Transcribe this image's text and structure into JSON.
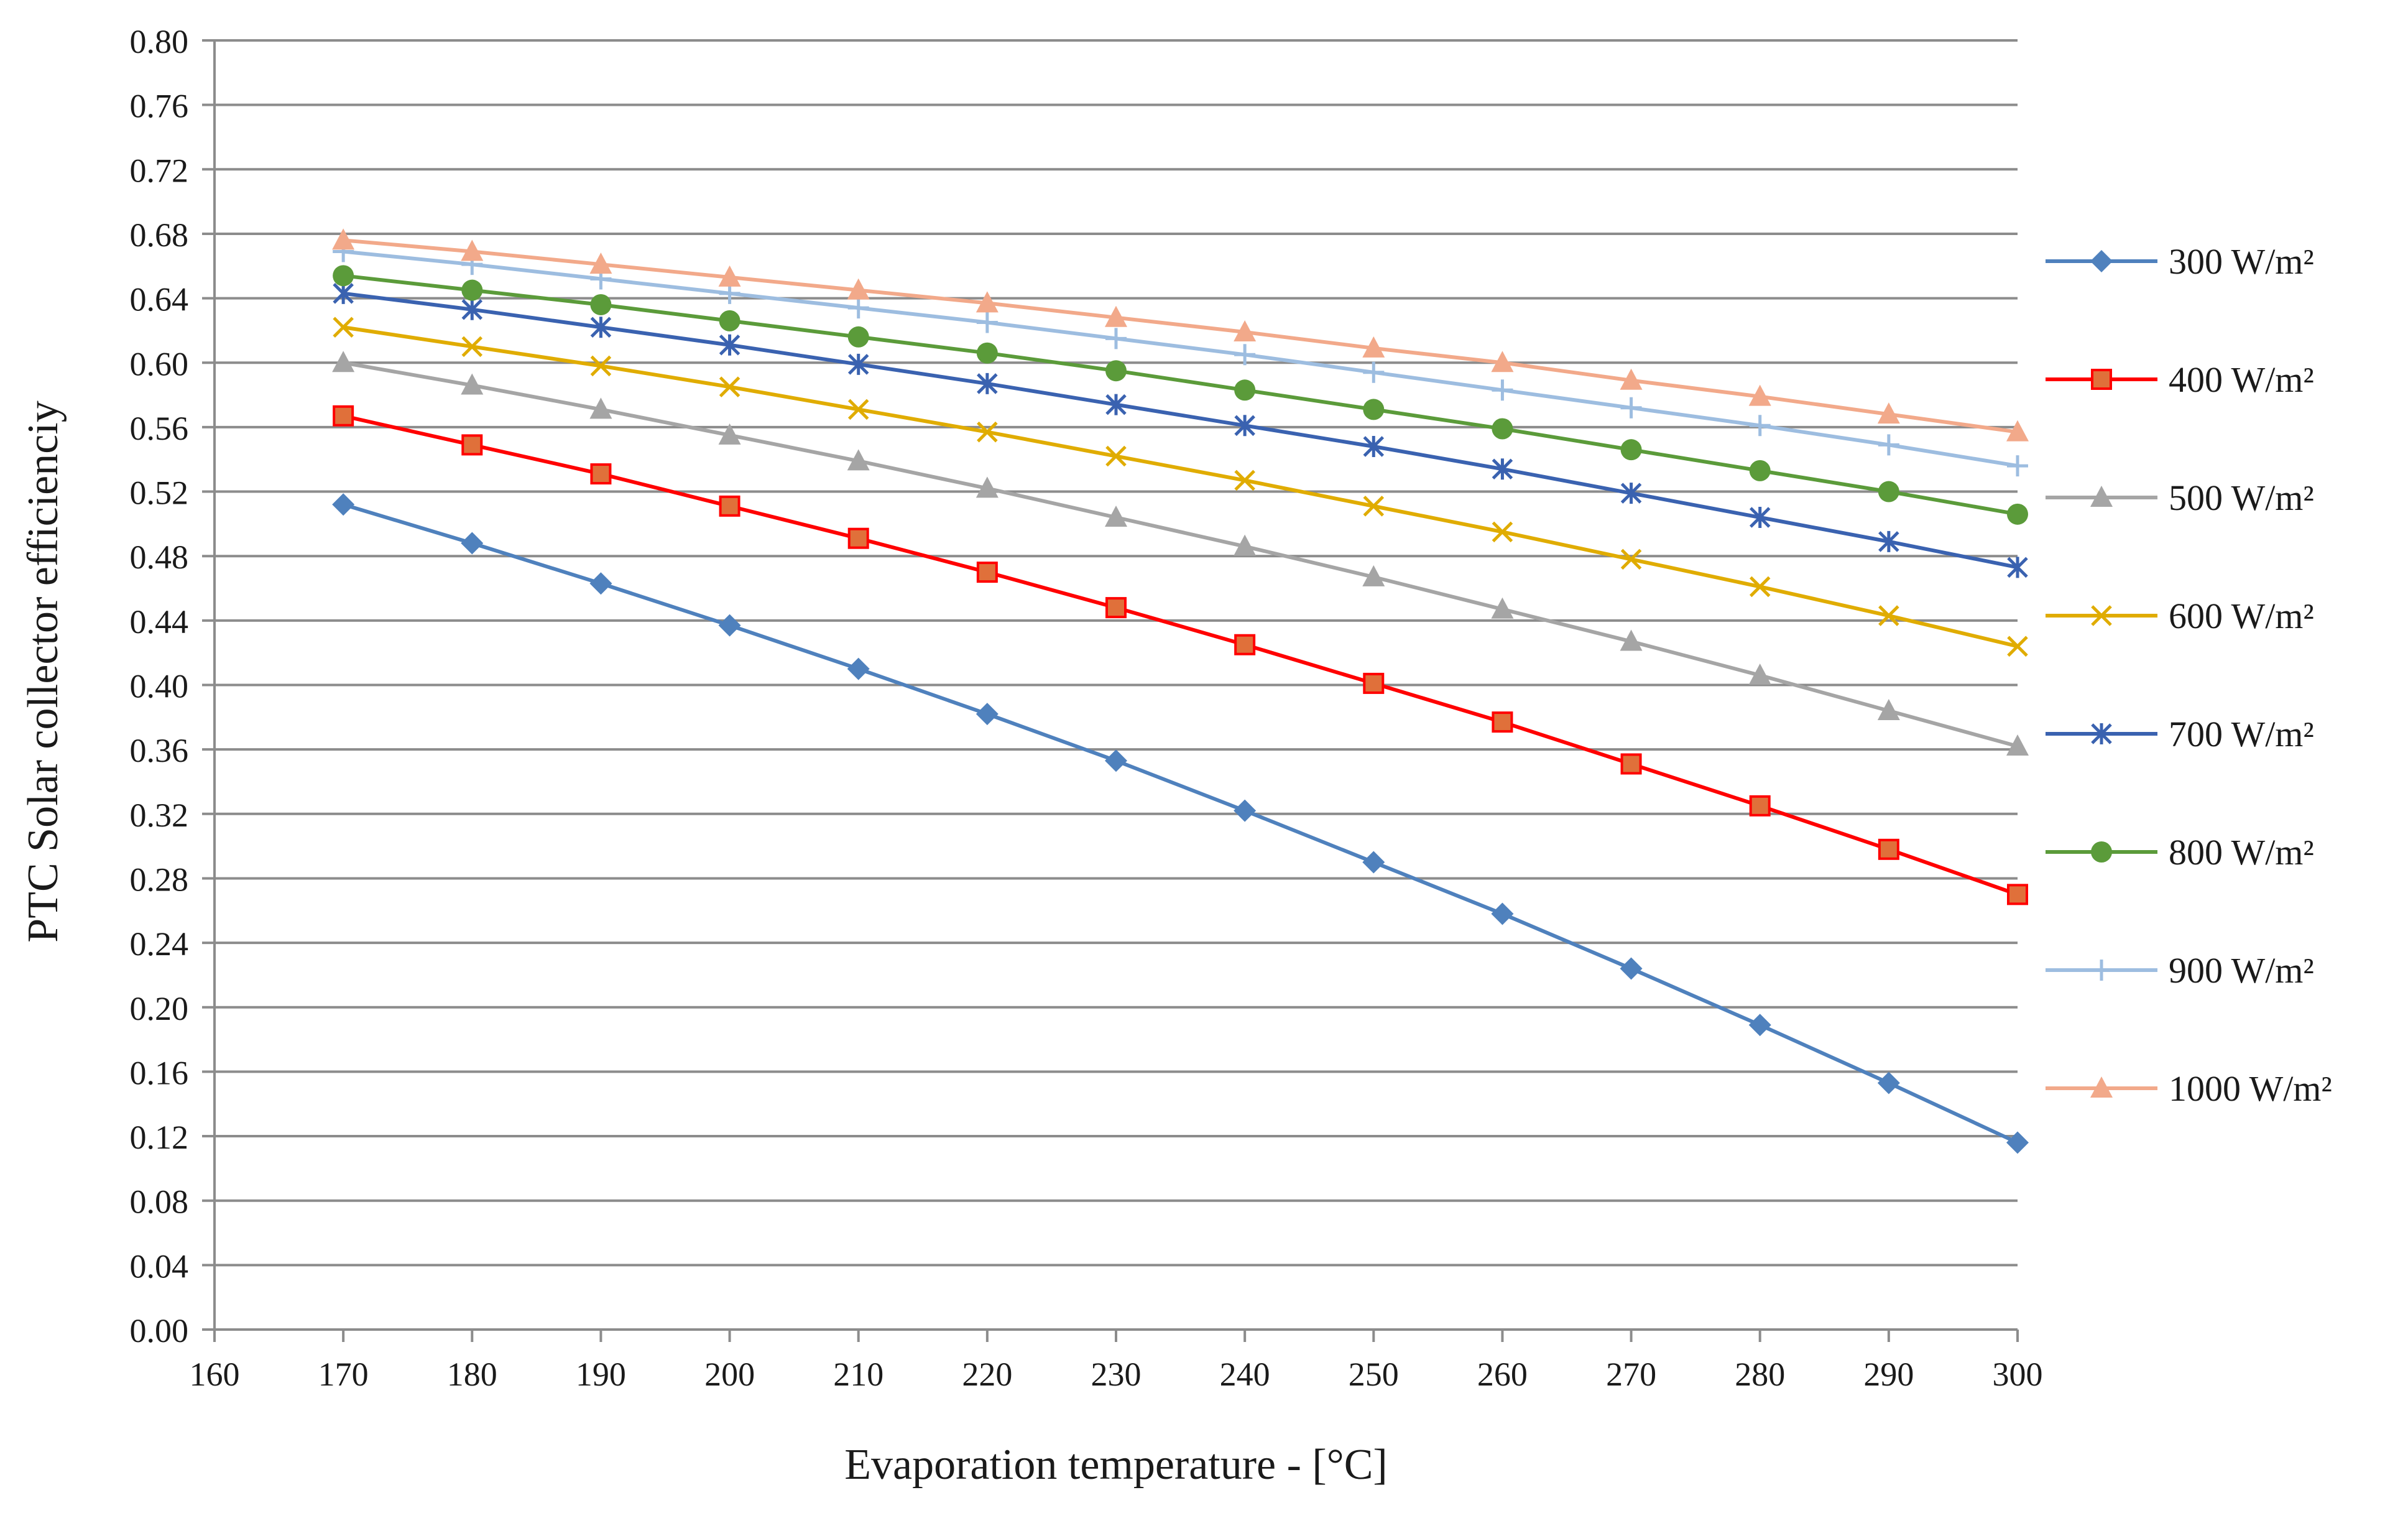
{
  "chart_data": {
    "type": "line",
    "title": "",
    "xlabel": "Evaporation temperature - [°C]",
    "ylabel": "PTC Solar collector efficienciy",
    "xlim": [
      160,
      300
    ],
    "ylim": [
      0,
      0.8
    ],
    "x_ticks": [
      160,
      170,
      180,
      190,
      200,
      210,
      220,
      230,
      240,
      250,
      260,
      270,
      280,
      290,
      300
    ],
    "x_tick_labels": [
      "160",
      "170",
      "180",
      "190",
      "200",
      "210",
      "220",
      "230",
      "240",
      "250",
      "260",
      "270",
      "280",
      "290",
      "300"
    ],
    "y_ticks": [
      0,
      0.04,
      0.08,
      0.12,
      0.16,
      0.2,
      0.24,
      0.28,
      0.32,
      0.36,
      0.4,
      0.44,
      0.48,
      0.52,
      0.56,
      0.6,
      0.64,
      0.68,
      0.72,
      0.76,
      0.8
    ],
    "y_tick_labels": [
      "0.00",
      "0.04",
      "0.08",
      "0.12",
      "0.16",
      "0.20",
      "0.24",
      "0.28",
      "0.32",
      "0.36",
      "0.40",
      "0.44",
      "0.48",
      "0.52",
      "0.56",
      "0.60",
      "0.64",
      "0.68",
      "0.72",
      "0.76",
      "0.80"
    ],
    "grid": "horizontal",
    "legend_position": "right",
    "x": [
      170,
      180,
      190,
      200,
      210,
      220,
      230,
      240,
      250,
      260,
      270,
      280,
      290,
      300
    ],
    "series": [
      {
        "name": "300 W/m²",
        "color": "#4f81bd",
        "marker": "diamond",
        "values": [
          0.512,
          0.488,
          0.463,
          0.437,
          0.41,
          0.382,
          0.353,
          0.322,
          0.29,
          0.258,
          0.224,
          0.189,
          0.153,
          0.116
        ]
      },
      {
        "name": "400 W/m²",
        "color": "#ff0000",
        "marker_fill": "#e0703a",
        "marker": "square",
        "values": [
          0.567,
          0.549,
          0.531,
          0.511,
          0.491,
          0.47,
          0.448,
          0.425,
          0.401,
          0.377,
          0.351,
          0.325,
          0.298,
          0.27
        ]
      },
      {
        "name": "500 W/m²",
        "color": "#a5a5a5",
        "marker": "triangle",
        "values": [
          0.6,
          0.586,
          0.571,
          0.555,
          0.539,
          0.522,
          0.504,
          0.486,
          0.467,
          0.447,
          0.427,
          0.406,
          0.384,
          0.362
        ]
      },
      {
        "name": "600 W/m²",
        "color": "#e0ac00",
        "marker": "x",
        "values": [
          0.622,
          0.61,
          0.598,
          0.585,
          0.571,
          0.557,
          0.542,
          0.527,
          0.511,
          0.495,
          0.478,
          0.461,
          0.443,
          0.424
        ]
      },
      {
        "name": "700 W/m²",
        "color": "#3a62b0",
        "marker": "star",
        "values": [
          0.643,
          0.633,
          0.622,
          0.611,
          0.599,
          0.587,
          0.574,
          0.561,
          0.548,
          0.534,
          0.519,
          0.504,
          0.489,
          0.473
        ]
      },
      {
        "name": "800 W/m²",
        "color": "#5b9b3a",
        "marker": "circle",
        "values": [
          0.654,
          0.645,
          0.636,
          0.626,
          0.616,
          0.606,
          0.595,
          0.583,
          0.571,
          0.559,
          0.546,
          0.533,
          0.52,
          0.506
        ]
      },
      {
        "name": "900 W/m²",
        "color": "#9dbde0",
        "marker": "plus",
        "values": [
          0.669,
          0.661,
          0.652,
          0.643,
          0.634,
          0.625,
          0.615,
          0.605,
          0.594,
          0.583,
          0.572,
          0.561,
          0.549,
          0.536
        ]
      },
      {
        "name": "1000 W/m²",
        "color": "#f2a98a",
        "marker": "triangle",
        "values": [
          0.676,
          0.669,
          0.661,
          0.653,
          0.645,
          0.637,
          0.628,
          0.619,
          0.609,
          0.6,
          0.589,
          0.579,
          0.568,
          0.557
        ]
      }
    ]
  }
}
